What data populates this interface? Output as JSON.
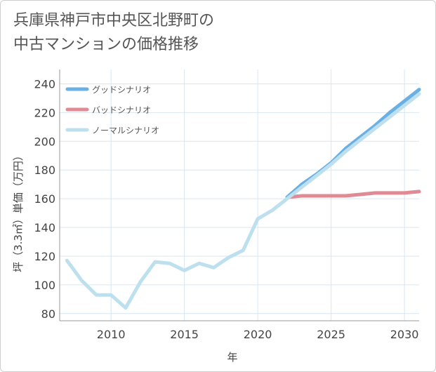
{
  "colors": {
    "good": "#6ab0e4",
    "bad": "#e08a93",
    "normal": "#bde0ee",
    "grid": "#d9e6f0",
    "axis": "#999999"
  },
  "chart_data": {
    "type": "line",
    "title_line1": "兵庫県神戸市中央区北野町の",
    "title_line2": "中古マンションの価格推移",
    "xlabel": "年",
    "ylabel": "坪（3.3㎡）単価（万円）",
    "xlim": [
      2006.5,
      2031
    ],
    "ylim": [
      75,
      250
    ],
    "x_ticks": [
      2010,
      2015,
      2020,
      2025,
      2030
    ],
    "y_ticks": [
      80,
      100,
      120,
      140,
      160,
      180,
      200,
      220,
      240
    ],
    "legend": [
      "グッドシナリオ",
      "バッドシナリオ",
      "ノーマルシナリオ"
    ],
    "series": [
      {
        "name": "グッドシナリオ",
        "color_key": "good",
        "x": [
          2022,
          2023,
          2024,
          2025,
          2026,
          2027,
          2028,
          2029,
          2030,
          2031
        ],
        "y": [
          161,
          170,
          177,
          185,
          195,
          203,
          211,
          220,
          228,
          236
        ]
      },
      {
        "name": "バッドシナリオ",
        "color_key": "bad",
        "x": [
          2022,
          2023,
          2024,
          2025,
          2026,
          2027,
          2028,
          2029,
          2030,
          2031
        ],
        "y": [
          161,
          162,
          162,
          162,
          162,
          163,
          164,
          164,
          164,
          165
        ]
      },
      {
        "name": "ノーマルシナリオ",
        "color_key": "normal",
        "x": [
          2007,
          2008,
          2009,
          2010,
          2011,
          2012,
          2013,
          2014,
          2015,
          2016,
          2017,
          2018,
          2019,
          2020,
          2021,
          2022,
          2023,
          2024,
          2025,
          2026,
          2027,
          2028,
          2029,
          2030,
          2031
        ],
        "y": [
          117,
          103,
          93,
          93,
          84,
          102,
          116,
          115,
          110,
          115,
          112,
          119,
          124,
          146,
          152,
          160,
          168,
          176,
          184,
          193,
          201,
          209,
          217,
          225,
          233
        ]
      }
    ]
  }
}
